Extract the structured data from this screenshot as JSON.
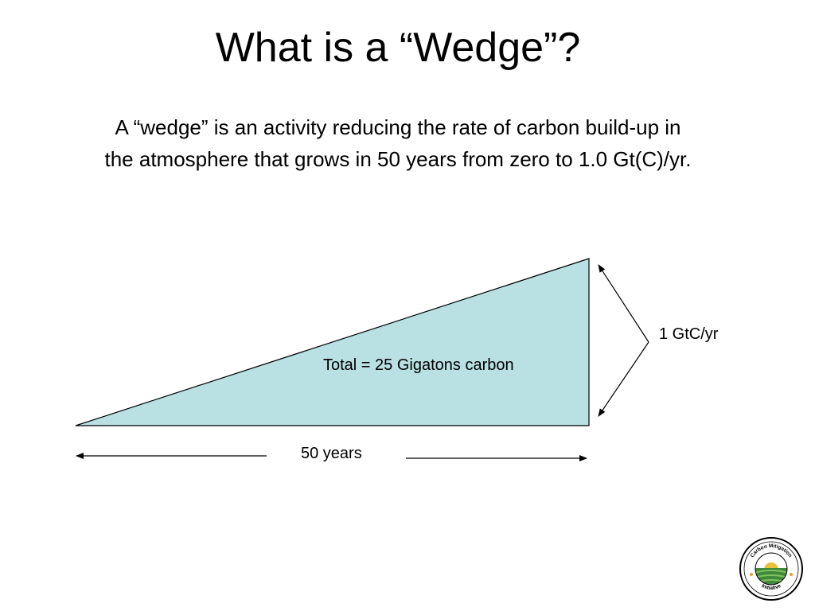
{
  "slide": {
    "title": "What is a “Wedge”?",
    "body_line1": "A “wedge” is an activity reducing the rate of carbon build-up in",
    "body_line2": "the atmosphere that grows in 50 years from zero to 1.0 Gt(C)/yr."
  },
  "diagram": {
    "fill_color": "#b9e0e2",
    "total_label": "Total = 25 Gigatons carbon",
    "height_label": "1 GtC/yr",
    "width_label": "50 years"
  },
  "logo": {
    "top_text": "Carbon Mitigation",
    "bottom_text": "Initiative"
  }
}
